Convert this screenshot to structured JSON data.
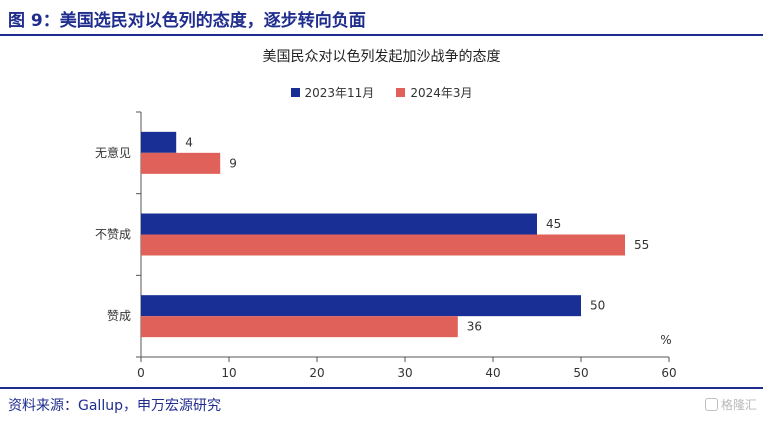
{
  "figure": {
    "title": "图 9：美国选民对以色列的态度，逐步转向负面",
    "source": "资料来源：Gallup，申万宏源研究",
    "watermark": "格隆汇"
  },
  "colors": {
    "accent": "#1f2d8f",
    "series_2023": "#1a2f96",
    "series_2024": "#e0605a"
  },
  "chart_data": {
    "type": "bar",
    "orientation": "horizontal",
    "title": "美国民众对以色列发起加沙战争的态度",
    "categories": [
      "无意见",
      "不赞成",
      "赞成"
    ],
    "series": [
      {
        "name": "2023年11月",
        "values": [
          4,
          45,
          50
        ]
      },
      {
        "name": "2024年3月",
        "values": [
          9,
          55,
          36
        ]
      }
    ],
    "xlim": [
      0,
      60
    ],
    "xticks": [
      0,
      10,
      20,
      30,
      40,
      50,
      60
    ],
    "unit_label": "%",
    "legend_position": "top",
    "grid": false
  }
}
